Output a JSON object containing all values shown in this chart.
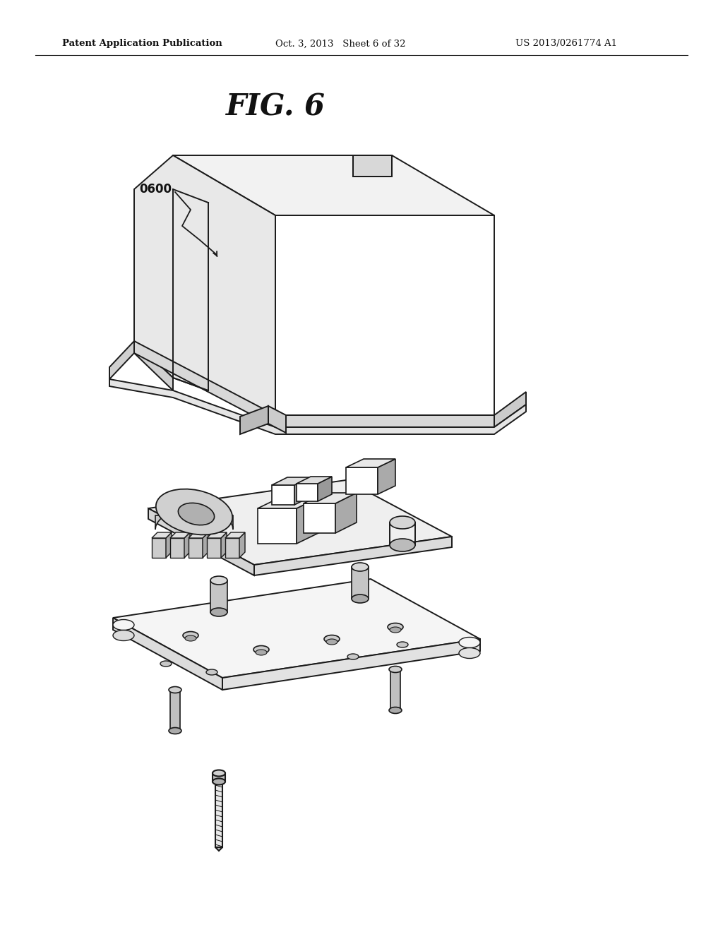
{
  "background_color": "#ffffff",
  "header_left": "Patent Application Publication",
  "header_center": "Oct. 3, 2013   Sheet 6 of 32",
  "header_right": "US 2013/0261774 A1",
  "fig_title": "FIG. 6",
  "label_0600": "0600",
  "line_color": "#1a1a1a",
  "lw_main": 1.4,
  "lw_thin": 1.0
}
